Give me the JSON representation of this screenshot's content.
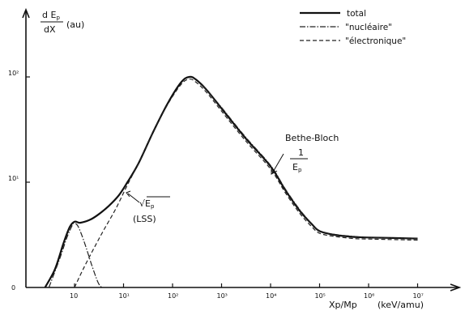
{
  "chart_data": {
    "type": "line",
    "xscale": "log",
    "ylabel_top": "d E",
    "ylabel_sub": "p",
    "ylabel_bottom": "dX",
    "ylabel_unit": "(au)",
    "xlabel": "Xp/Mp",
    "xlabel_unit": "(keV/amu)",
    "x_ticks": [
      {
        "value": 1,
        "label": "10"
      },
      {
        "value": 10,
        "label": "10¹"
      },
      {
        "value": 100,
        "label": "10²"
      },
      {
        "value": 1000,
        "label": "10³"
      },
      {
        "value": 10000,
        "label": "10⁴"
      },
      {
        "value": 100000,
        "label": "10⁵"
      },
      {
        "value": 1000000,
        "label": "10⁶"
      },
      {
        "value": 10000000,
        "label": "10⁷"
      }
    ],
    "y_ticks": [
      {
        "value": 0,
        "label": "0"
      },
      {
        "value": 2,
        "label": "10¹"
      },
      {
        "value": 4,
        "label": "10²"
      }
    ],
    "xlim": [
      0.08,
      50000000
    ],
    "ylim": [
      0,
      6.1
    ],
    "series": [
      {
        "name": "total",
        "style": "solid",
        "x": [
          0.25,
          0.4,
          0.6,
          0.8,
          1.0,
          1.3,
          2,
          3,
          5,
          8,
          12,
          20,
          40,
          80,
          150,
          220,
          300,
          500,
          1000,
          3000,
          10000,
          20000,
          40000,
          70000,
          100000,
          200000,
          500000,
          1000000,
          10000000
        ],
        "y": [
          0.0,
          0.35,
          0.85,
          1.15,
          1.25,
          1.23,
          1.28,
          1.38,
          1.55,
          1.75,
          2.0,
          2.35,
          2.95,
          3.5,
          3.9,
          4.0,
          3.95,
          3.75,
          3.4,
          2.85,
          2.3,
          1.85,
          1.45,
          1.2,
          1.07,
          1.0,
          0.96,
          0.95,
          0.93
        ]
      },
      {
        "name": "\"nucléaire\"",
        "style": "dashdot",
        "x": [
          0.3,
          0.5,
          0.7,
          0.9,
          1.0,
          1.2,
          1.6,
          2.2,
          3.0,
          3.6
        ],
        "y": [
          0.0,
          0.55,
          0.95,
          1.18,
          1.22,
          1.15,
          0.85,
          0.45,
          0.1,
          0.0
        ],
        "total_overlay_x": [
          400,
          1000,
          3000,
          10000,
          20000,
          40000,
          70000,
          100000,
          200000,
          500000,
          1000000,
          10000000
        ],
        "total_overlay_y": [
          3.86,
          3.42,
          2.87,
          2.32,
          1.87,
          1.47,
          1.21,
          1.08,
          1.01,
          0.97,
          0.95,
          0.93
        ]
      },
      {
        "name": "\"électronique\"",
        "style": "dashed",
        "x": [
          1.0,
          1.5,
          2.5,
          4,
          7,
          12,
          20,
          40,
          80,
          150,
          220,
          300,
          500,
          1000,
          3000,
          10000,
          20000,
          40000,
          70000,
          100000,
          200000,
          500000,
          1000000,
          10000000
        ],
        "y": [
          0.0,
          0.35,
          0.75,
          1.1,
          1.5,
          1.95,
          2.35,
          2.95,
          3.48,
          3.86,
          3.96,
          3.9,
          3.7,
          3.35,
          2.8,
          2.25,
          1.8,
          1.4,
          1.15,
          1.03,
          0.97,
          0.93,
          0.92,
          0.9
        ]
      }
    ],
    "legend": {
      "placement": "top-right",
      "entries": [
        "total",
        "\"nucléaire\"",
        "\"électronique\""
      ]
    },
    "annotations": {
      "bethe_title": "Bethe-Bloch",
      "bethe_num": "1",
      "bethe_den": "E",
      "bethe_den_sub": "p",
      "lss_top": "√E",
      "lss_top_sub": "p",
      "lss_bottom": "(LSS)"
    }
  }
}
